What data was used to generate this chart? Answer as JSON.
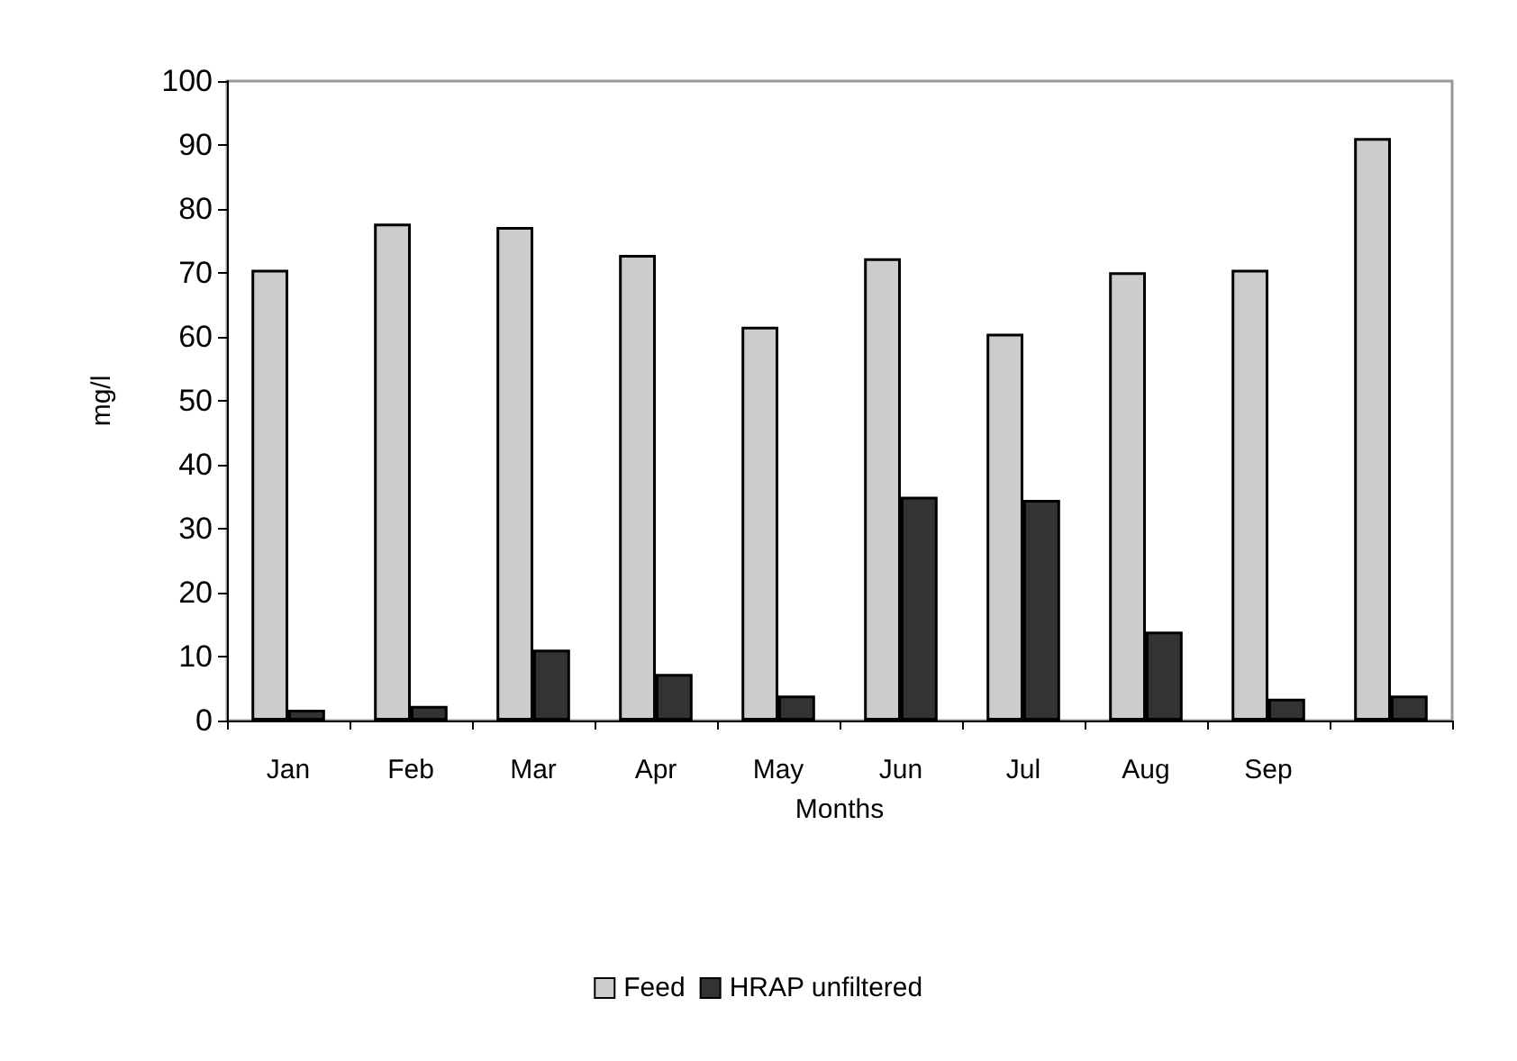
{
  "chart_data": {
    "type": "bar",
    "xlabel": "Months",
    "ylabel": "mg/l",
    "categories": [
      "Jan",
      "Feb",
      "Mar",
      "Apr",
      "May",
      "Jun",
      "Jul",
      "Aug",
      "Sep",
      null
    ],
    "series": [
      {
        "name": "Feed",
        "color": "#cccccc",
        "values": [
          70.5,
          77.7,
          77.2,
          72.8,
          61.6,
          72.3,
          60.5,
          70.1,
          70.5,
          91.1
        ]
      },
      {
        "name": "HRAP unfiltered",
        "color": "#333333",
        "values": [
          1.7,
          2.3,
          11.1,
          7.3,
          3.9,
          35.0,
          34.5,
          13.9,
          3.4,
          3.9
        ]
      }
    ],
    "ylim": [
      0,
      100
    ],
    "yticks": [
      0,
      10,
      20,
      30,
      40,
      50,
      60,
      70,
      80,
      90,
      100
    ],
    "grid": false,
    "legend": "bottom"
  }
}
